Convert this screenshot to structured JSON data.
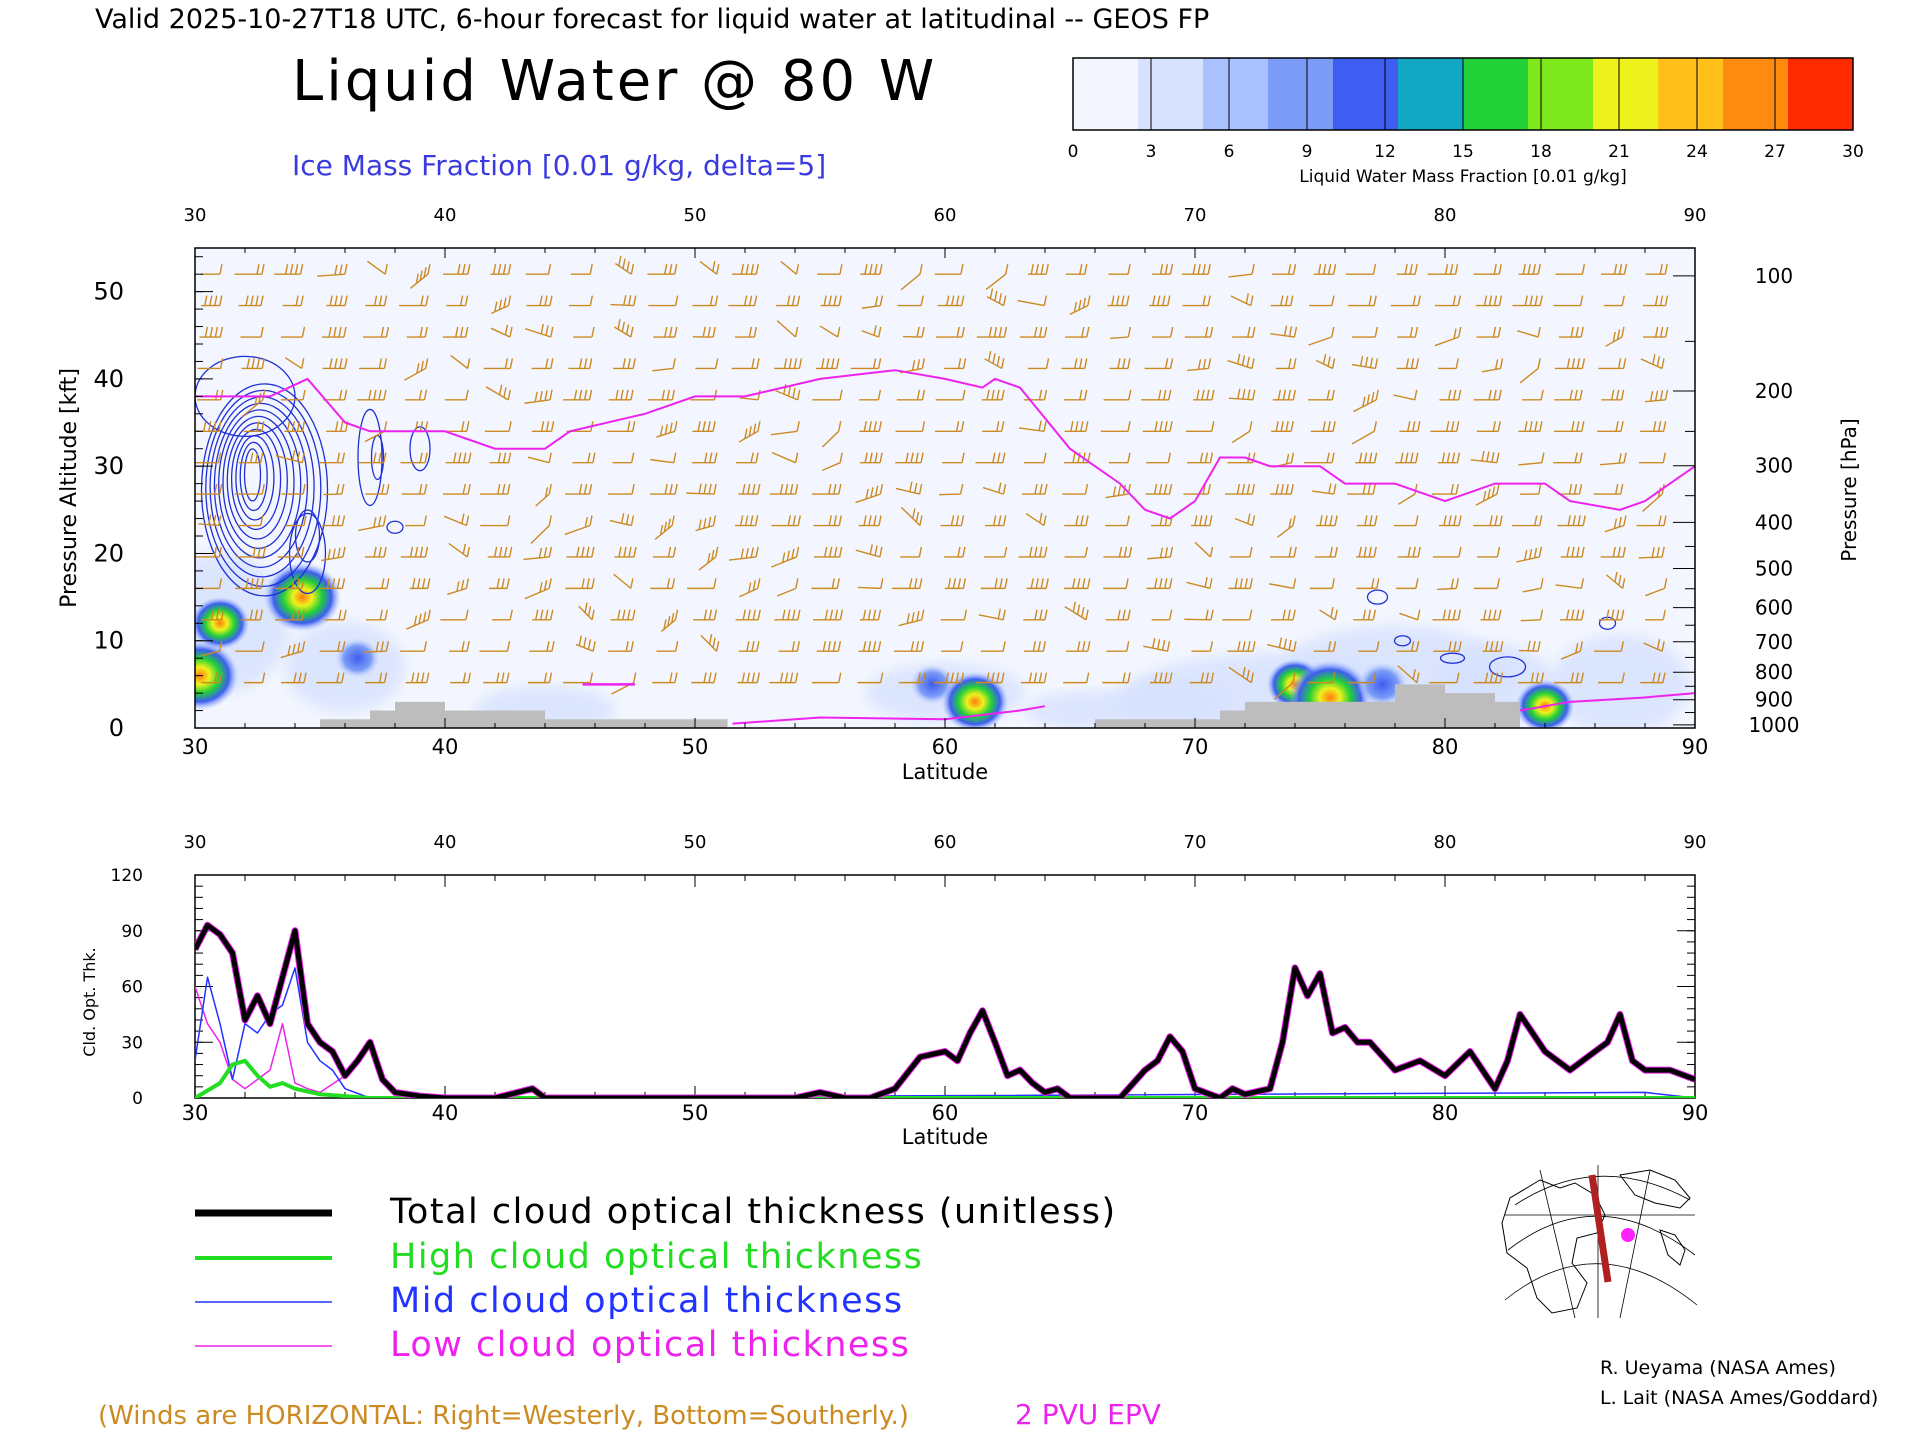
{
  "header": {
    "valid_line": "Valid 2025-10-27T18 UTC, 6-hour forecast for liquid water at latitudinal -- GEOS FP",
    "main_title": "Liquid Water @ 80 W",
    "contour_label": "Ice Mass Fraction [0.01 g/kg, delta=5]"
  },
  "colorbar": {
    "ticks": [
      "0",
      "3",
      "6",
      "9",
      "12",
      "15",
      "18",
      "21",
      "24",
      "27",
      "30"
    ],
    "colors": [
      "#f4f6ff",
      "#d7e2ff",
      "#a9c1ff",
      "#7b9cf6",
      "#3d5ef0",
      "#12a8c4",
      "#22d038",
      "#7de81c",
      "#eef21c",
      "#ffc01a",
      "#ff8a10",
      "#ff2a00"
    ],
    "label": "Liquid Water Mass Fraction [0.01 g/kg]"
  },
  "colors": {
    "wind_barb": "#cc8a22",
    "epv": "#ee22ee",
    "ice_contour": "#1f2fd6",
    "terrain": "#bdbdbd",
    "track": "#b02020"
  },
  "chart_data": [
    {
      "type": "heatmap",
      "xlabel": "Latitude",
      "ylabel_left": "Pressure Altitude [kft]",
      "ylabel_right": "Pressure [hPa]",
      "xlim": [
        30,
        90
      ],
      "ylim": [
        0,
        55
      ],
      "x_ticks": [
        "30",
        "40",
        "50",
        "60",
        "70",
        "80",
        "90"
      ],
      "y_ticks": [
        "0",
        "10",
        "20",
        "30",
        "40",
        "50"
      ],
      "pressure_ticks": [
        "100",
        "200",
        "300",
        "400",
        "500",
        "600",
        "700",
        "800",
        "900",
        "1000"
      ],
      "epv_2pvu": {
        "lat": [
          30,
          31,
          33,
          34.5,
          36,
          37,
          38,
          40,
          42,
          44,
          45,
          48,
          50,
          52,
          55,
          58,
          60,
          61.5,
          62,
          63,
          65,
          66,
          67,
          68,
          69,
          70,
          71,
          72,
          73,
          75,
          76,
          78,
          80,
          82,
          84,
          85,
          87,
          88,
          89,
          90
        ],
        "alt_kft": [
          38,
          38,
          38,
          40,
          35,
          34,
          34,
          34,
          32,
          32,
          34,
          36,
          38,
          38,
          40,
          41,
          40,
          39,
          40,
          39,
          32,
          30,
          28,
          25,
          24,
          26,
          31,
          31,
          30,
          30,
          28,
          28,
          26,
          28,
          28,
          26,
          25,
          26,
          28,
          30
        ]
      },
      "liquid_water_blobs": [
        {
          "lat": 30.2,
          "alt_kft": 6,
          "value": 22
        },
        {
          "lat": 31,
          "alt_kft": 12,
          "value": 15
        },
        {
          "lat": 34.3,
          "alt_kft": 15,
          "value": 22
        },
        {
          "lat": 36.5,
          "alt_kft": 8,
          "value": 10
        },
        {
          "lat": 59.5,
          "alt_kft": 5,
          "value": 10
        },
        {
          "lat": 61.2,
          "alt_kft": 3,
          "value": 18
        },
        {
          "lat": 74,
          "alt_kft": 5,
          "value": 14
        },
        {
          "lat": 75.4,
          "alt_kft": 3.5,
          "value": 24
        },
        {
          "lat": 77.5,
          "alt_kft": 5,
          "value": 12
        },
        {
          "lat": 84,
          "alt_kft": 2.5,
          "value": 15
        }
      ],
      "terrain": {
        "lat": [
          30,
          34.5,
          35,
          36,
          37,
          38,
          40,
          41,
          44,
          51,
          51.3,
          65,
          66,
          70,
          71,
          72,
          75,
          78,
          80,
          82,
          83,
          90
        ],
        "alt_kft": [
          0,
          0,
          1,
          1,
          2,
          3,
          2,
          2,
          1,
          1,
          0,
          0,
          1,
          1,
          2,
          3,
          3,
          5,
          4,
          3,
          0,
          0
        ]
      }
    },
    {
      "type": "line",
      "xlabel": "Latitude",
      "ylabel": "Cld. Opt. Thk.",
      "xlim": [
        30,
        90
      ],
      "ylim": [
        0,
        120
      ],
      "x_ticks": [
        "30",
        "40",
        "50",
        "60",
        "70",
        "80",
        "90"
      ],
      "y_ticks": [
        "0",
        "30",
        "60",
        "90",
        "120"
      ],
      "series": [
        {
          "name": "Total cloud optical thickness (unitless)",
          "color": "#000000",
          "width": 5,
          "x": [
            30,
            30.5,
            31,
            31.5,
            32,
            32.5,
            33,
            33.5,
            34,
            34.5,
            35,
            35.5,
            36,
            36.5,
            37,
            37.5,
            38,
            39,
            40,
            42,
            43.5,
            44,
            46,
            50,
            54,
            55,
            56,
            57,
            58,
            59,
            60,
            60.5,
            61,
            61.5,
            62,
            62.5,
            63,
            63.5,
            64,
            64.5,
            65,
            66,
            67,
            68,
            68.5,
            69,
            69.5,
            70,
            71,
            71.5,
            72,
            73,
            73.5,
            74,
            74.5,
            75,
            75.5,
            76,
            76.5,
            77,
            78,
            79,
            80,
            81,
            82,
            82.5,
            83,
            84,
            85,
            86,
            86.5,
            87,
            87.5,
            88,
            89,
            90
          ],
          "y": [
            80,
            93,
            88,
            78,
            42,
            55,
            40,
            65,
            90,
            40,
            30,
            25,
            12,
            20,
            30,
            10,
            3,
            1,
            0,
            0,
            5,
            0,
            0,
            0,
            0,
            3,
            0,
            0,
            5,
            22,
            25,
            20,
            35,
            47,
            30,
            12,
            15,
            8,
            3,
            5,
            0,
            0,
            0,
            15,
            20,
            33,
            25,
            5,
            0,
            5,
            2,
            5,
            30,
            70,
            55,
            67,
            35,
            38,
            30,
            30,
            15,
            20,
            12,
            25,
            5,
            20,
            45,
            25,
            15,
            25,
            30,
            45,
            20,
            15,
            15,
            10
          ]
        },
        {
          "name": "High cloud optical thickness",
          "color": "#22dd22",
          "width": 4,
          "x": [
            30,
            31,
            31.5,
            32,
            32.5,
            33,
            33.5,
            34,
            35,
            36,
            37,
            40,
            90
          ],
          "y": [
            0,
            8,
            18,
            20,
            12,
            6,
            8,
            5,
            2,
            1,
            0,
            0,
            0
          ]
        },
        {
          "name": "Mid cloud optical thickness",
          "color": "#2233ff",
          "width": 1.5,
          "x": [
            30,
            30.5,
            31,
            31.5,
            32,
            32.5,
            33,
            33.5,
            34,
            34.5,
            35,
            35.5,
            36,
            37,
            40,
            88,
            90
          ],
          "y": [
            20,
            65,
            40,
            10,
            40,
            35,
            45,
            50,
            70,
            30,
            20,
            15,
            5,
            0,
            0,
            3,
            0
          ]
        },
        {
          "name": "Low cloud optical thickness",
          "color": "#ee22ee",
          "width": 1.5,
          "x": [
            30,
            30.5,
            31,
            31.5,
            32,
            32.5,
            33,
            33.5,
            34,
            34.5,
            35,
            36,
            37,
            37.5,
            38,
            39,
            40
          ],
          "y": [
            60,
            40,
            30,
            10,
            5,
            10,
            15,
            40,
            8,
            5,
            3,
            12,
            30,
            10,
            3,
            1,
            0
          ]
        }
      ]
    }
  ],
  "legend": [
    {
      "label": "Total cloud optical thickness (unitless)",
      "color": "#000000"
    },
    {
      "label": "High cloud optical thickness",
      "color": "#22dd22"
    },
    {
      "label": "Mid cloud optical thickness",
      "color": "#2233ff"
    },
    {
      "label": "Low cloud optical thickness",
      "color": "#ee22ee"
    }
  ],
  "footer": {
    "winds_note": "(Winds are HORIZONTAL: Right=Westerly, Bottom=Southerly.)",
    "epv_label": "2 PVU EPV",
    "credit_1": "R. Ueyama (NASA Ames)",
    "credit_2": "L. Lait (NASA Ames/Goddard)"
  }
}
